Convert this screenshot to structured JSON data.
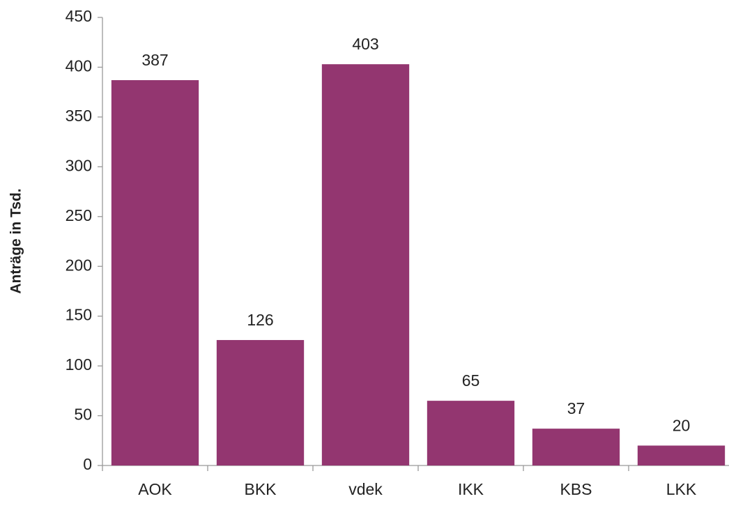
{
  "chart_data": {
    "type": "bar",
    "ylabel": "Anträge in Tsd.",
    "categories": [
      "AOK",
      "BKK",
      "vdek",
      "IKK",
      "KBS",
      "LKK"
    ],
    "values": [
      387,
      126,
      403,
      65,
      37,
      20
    ],
    "color": "#933670",
    "ylim": [
      0,
      450
    ],
    "yticks": [
      0,
      50,
      100,
      150,
      200,
      250,
      300,
      350,
      400,
      450
    ],
    "grid": false,
    "data_labels": true
  }
}
